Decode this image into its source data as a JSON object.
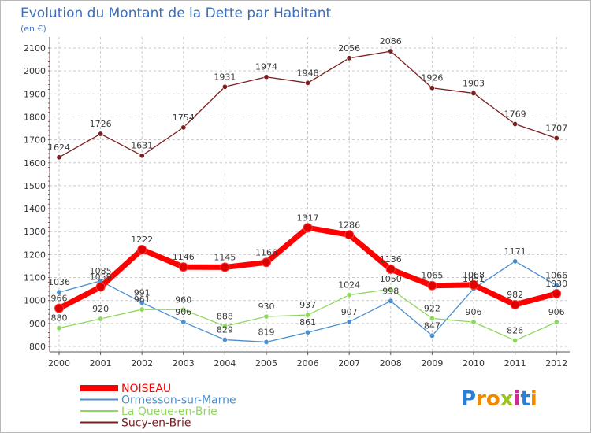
{
  "chart_data": {
    "type": "line",
    "title": "Evolution du Montant de la Dette par Habitant",
    "subtitle": "(en €)",
    "xlabel": "",
    "ylabel": "",
    "x": [
      "2000",
      "2001",
      "2002",
      "2003",
      "2004",
      "2005",
      "2006",
      "2007",
      "2008",
      "2009",
      "2010",
      "2011",
      "2012"
    ],
    "y_ticks": [
      "800",
      "900",
      "1000",
      "1100",
      "1200",
      "1300",
      "1400",
      "1500",
      "1600",
      "1700",
      "1800",
      "1900",
      "2000",
      "2100"
    ],
    "ylim": [
      800,
      2100
    ],
    "grid": true,
    "legend_position": "bottom-left",
    "series": [
      {
        "name": "NOISEAU",
        "color": "#ff0000",
        "emphasis": true,
        "values": [
          966,
          1059,
          1222,
          1146,
          1145,
          1166,
          1317,
          1286,
          1136,
          1065,
          1068,
          982,
          1030
        ]
      },
      {
        "name": "Ormesson-sur-Marne",
        "color": "#4a8fd0",
        "values": [
          1036,
          1085,
          991,
          906,
          829,
          819,
          861,
          907,
          998,
          847,
          1051,
          1171,
          1066
        ]
      },
      {
        "name": "La Queue-en-Brie",
        "color": "#8fd860",
        "values": [
          880,
          920,
          961,
          960,
          888,
          930,
          937,
          1024,
          1050,
          922,
          906,
          826,
          906
        ]
      },
      {
        "name": "Sucy-en-Brie",
        "color": "#7a2020",
        "values": [
          1624,
          1726,
          1631,
          1754,
          1931,
          1974,
          1948,
          2056,
          2086,
          1926,
          1903,
          1769,
          1707
        ]
      }
    ],
    "data_labels": [
      {
        "series": 3,
        "texts": [
          "1624",
          "1726",
          "1631",
          "1754",
          "1931",
          "1974",
          "1948",
          "2056",
          "2086",
          "1926",
          "1903",
          "1769",
          "1707"
        ]
      },
      {
        "series": 0,
        "texts": [
          "966",
          "1059",
          "1222",
          "1146",
          "1145",
          "1166",
          "1317",
          "1286",
          "1136",
          "1065",
          "1068",
          "982",
          "1030"
        ]
      },
      {
        "series": 1,
        "texts": [
          "1036",
          "1085",
          "991",
          "906",
          "829",
          "819",
          "861",
          "907",
          "998",
          "847",
          "1051",
          "1171",
          "1066"
        ]
      },
      {
        "series": 2,
        "texts": [
          "880",
          "920",
          "961",
          "960",
          "888",
          "930",
          "937",
          "1024",
          "1050",
          "922",
          "906",
          "826",
          "906"
        ]
      }
    ]
  },
  "brand": {
    "logo_text": "Proxiti",
    "letters": [
      "P",
      "r",
      "o",
      "x",
      "i",
      "t",
      "i"
    ],
    "letter_colors": [
      "#2a7fd4",
      "#f08a00",
      "#f08a00",
      "#9bc41e",
      "#d4289a",
      "#2a7fd4",
      "#f08a00"
    ]
  }
}
